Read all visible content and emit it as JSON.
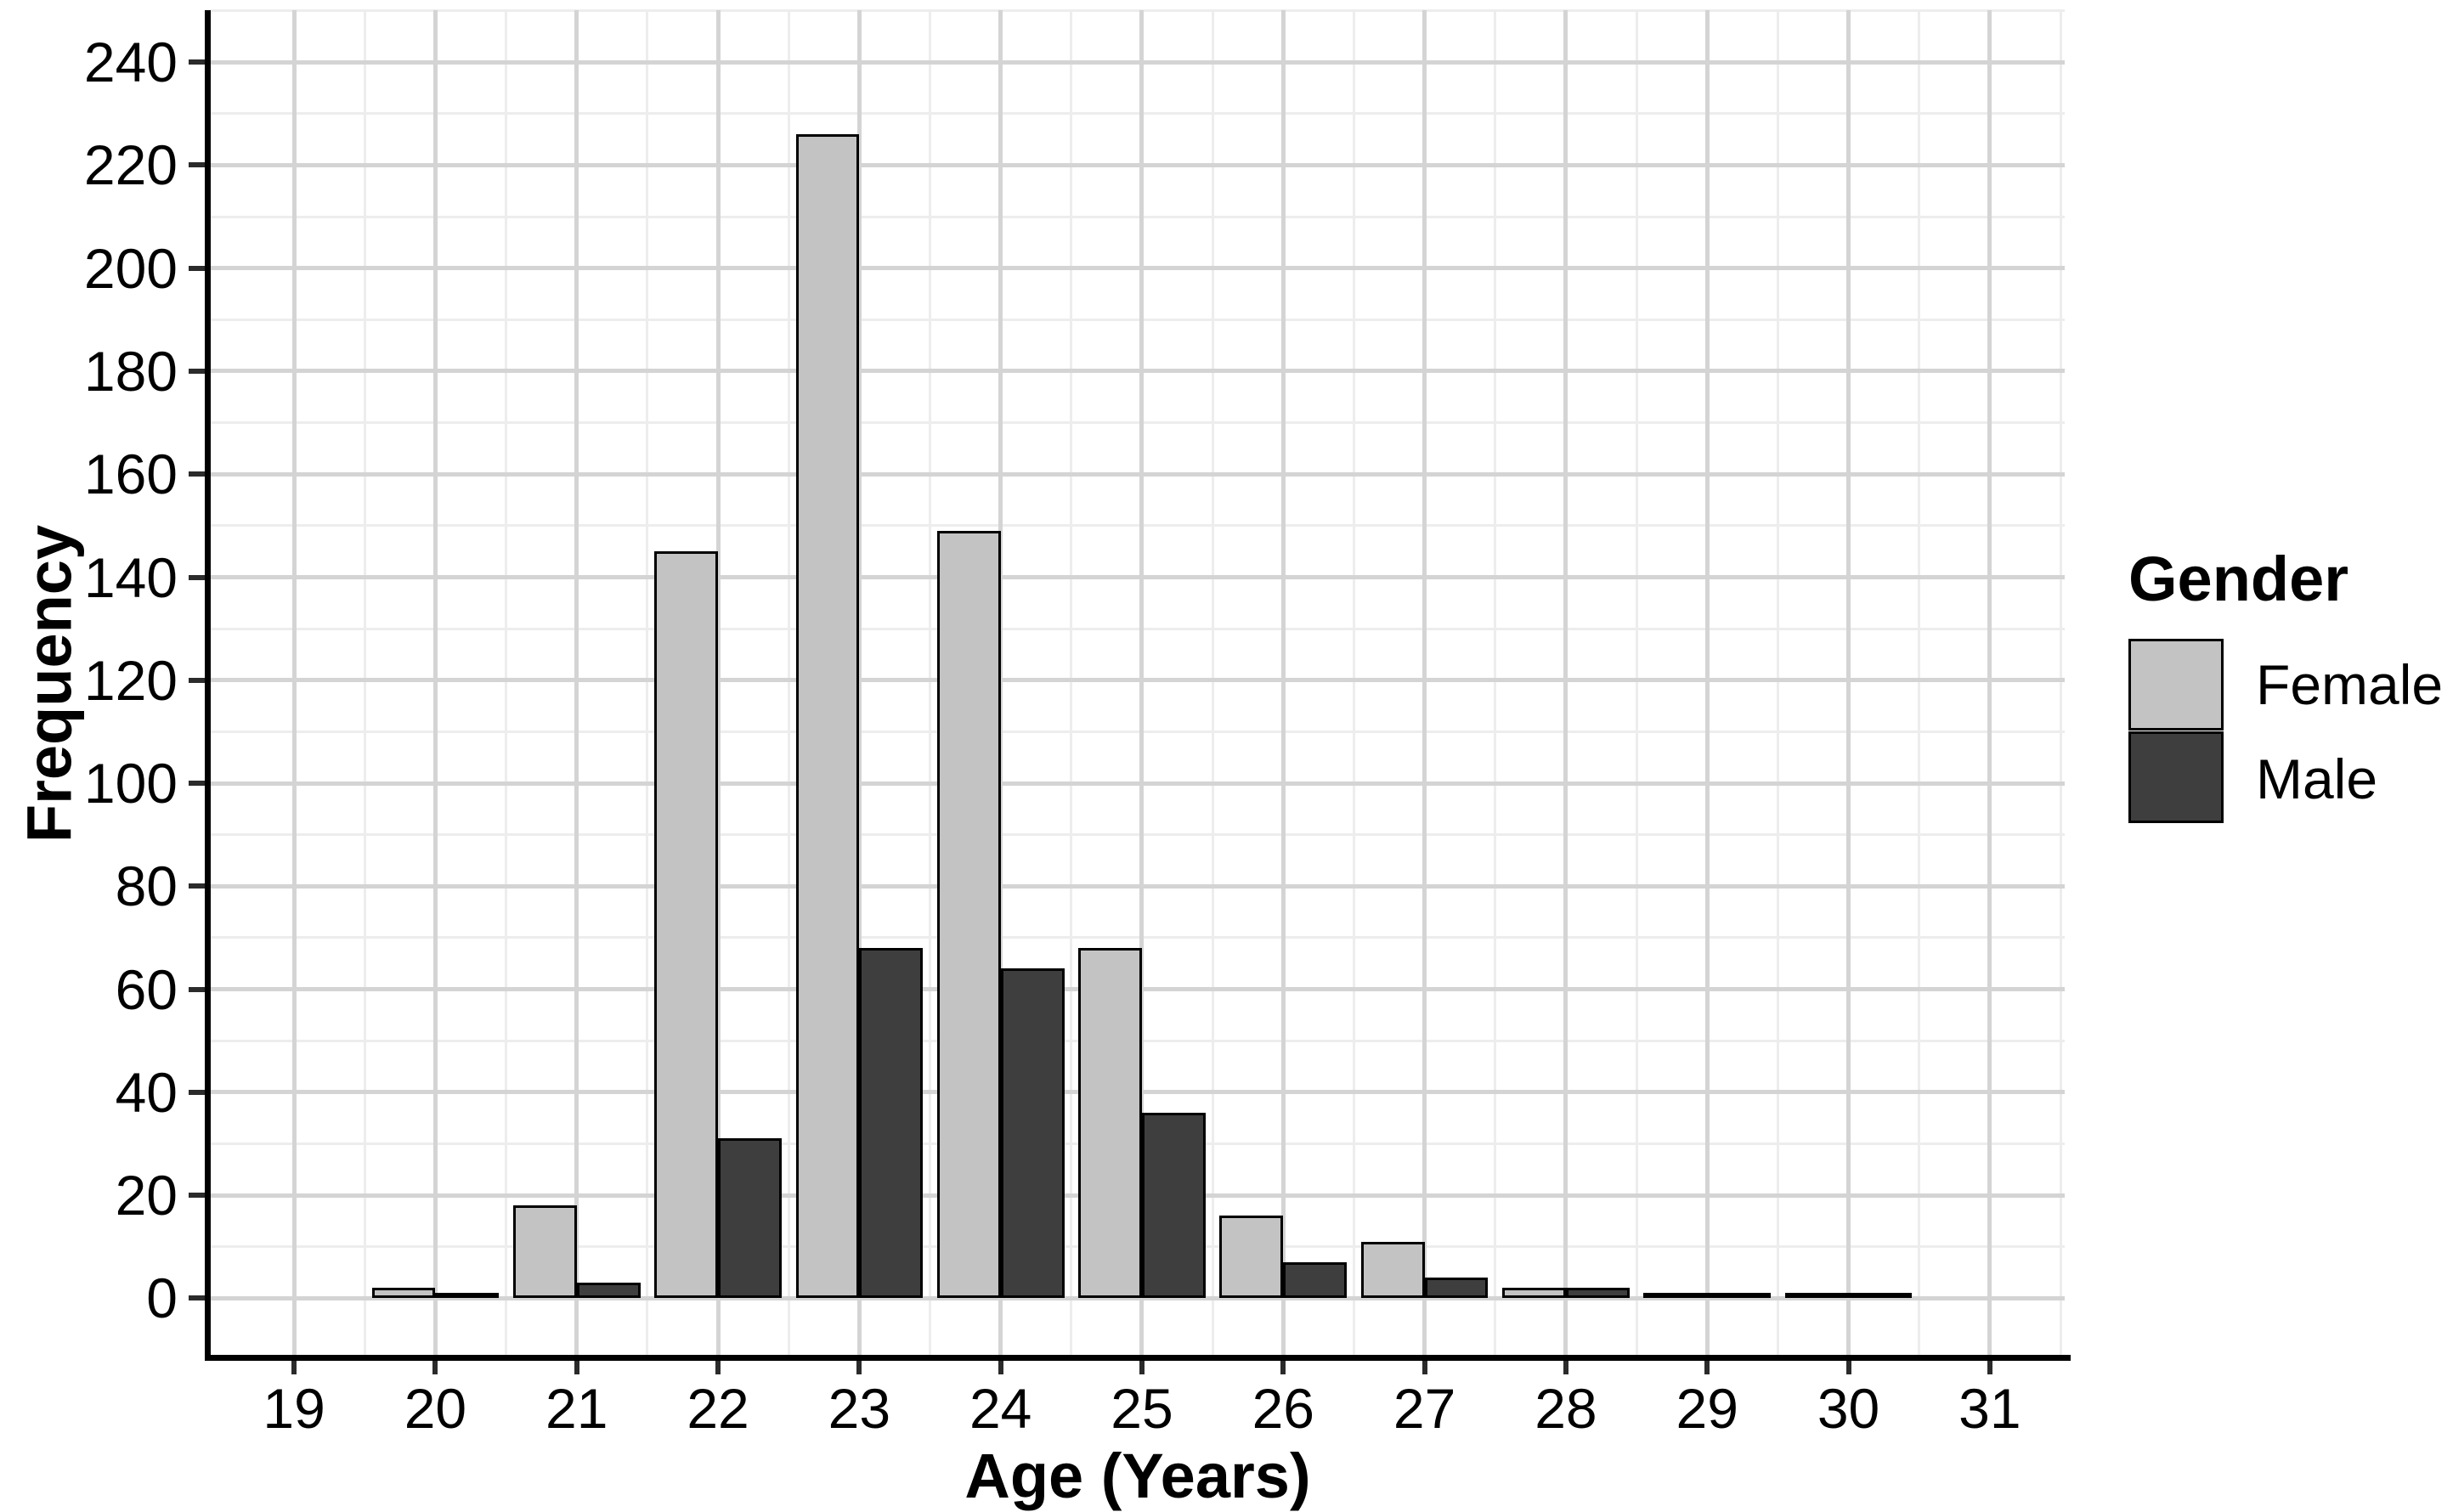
{
  "chart_data": {
    "type": "bar",
    "title": "",
    "xlabel": "Age (Years)",
    "ylabel": "Frequency",
    "categories": [
      20,
      21,
      22,
      23,
      24,
      25,
      26,
      27,
      28,
      29,
      30
    ],
    "series": [
      {
        "name": "Female",
        "color": "#c3c3c3",
        "values": [
          2,
          18,
          145,
          226,
          149,
          68,
          16,
          11,
          2,
          1,
          1
        ]
      },
      {
        "name": "Male",
        "color": "#3e3e3e",
        "values": [
          1,
          3,
          31,
          68,
          64,
          36,
          7,
          4,
          2,
          1,
          1
        ]
      }
    ],
    "x_ticks": [
      19,
      20,
      21,
      22,
      23,
      24,
      25,
      26,
      27,
      28,
      29,
      30,
      31
    ],
    "y_ticks": [
      0,
      20,
      40,
      60,
      80,
      100,
      120,
      140,
      160,
      180,
      200,
      220,
      240
    ],
    "xlim": [
      18.41,
      31.53
    ],
    "ylim": [
      -11.5,
      250.1
    ],
    "bar_width": 0.45,
    "grid": {
      "major_color": "#d4d4d4",
      "minor_color": "#ededed",
      "minor_step": 10,
      "x_minor_offset": 0.5
    },
    "legend_position": "right",
    "bar_outline_color": "#000000"
  },
  "axes": {
    "x_title": "Age (Years)",
    "y_title": "Frequency"
  },
  "legend": {
    "title": "Gender",
    "items": [
      {
        "label": "Female",
        "color": "#c3c3c3"
      },
      {
        "label": "Male",
        "color": "#3e3e3e"
      }
    ]
  }
}
